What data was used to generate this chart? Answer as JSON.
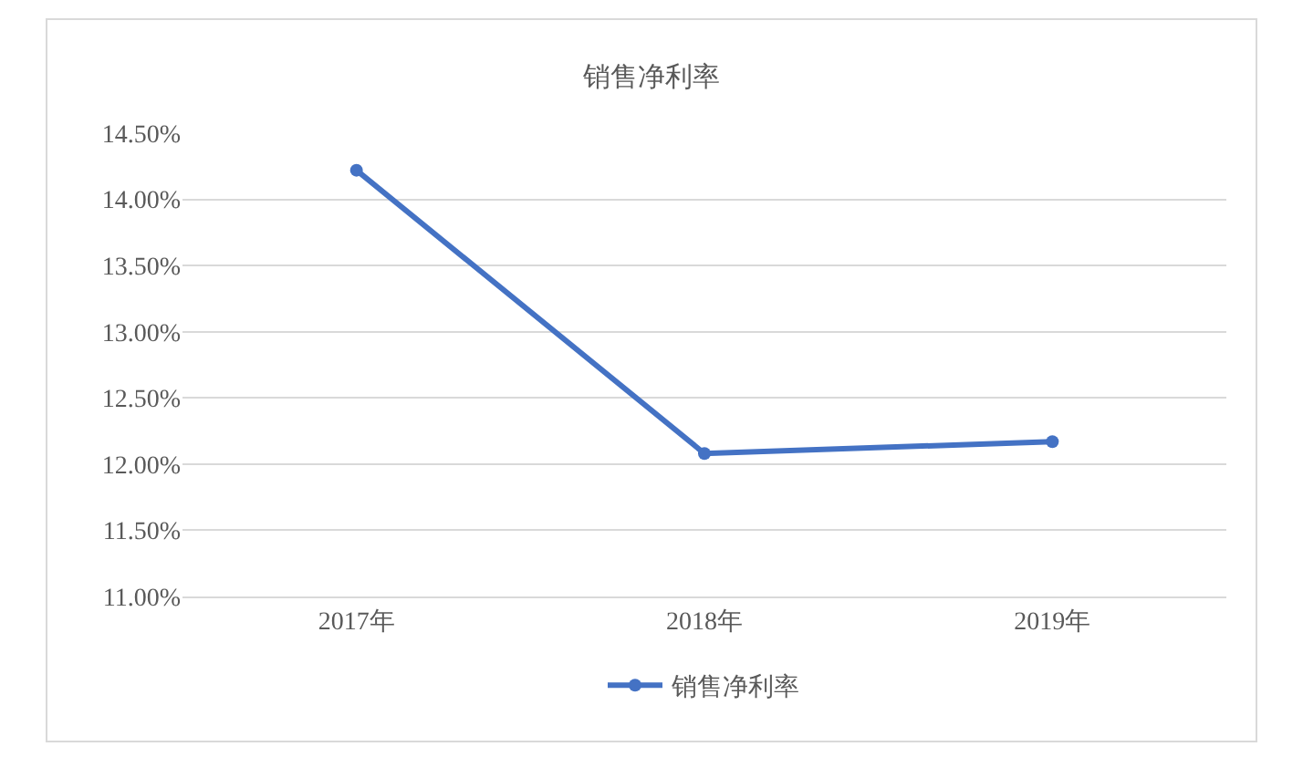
{
  "chart_data": {
    "type": "line",
    "title": "销售净利率",
    "categories": [
      "2017年",
      "2018年",
      "2019年"
    ],
    "series": [
      {
        "name": "销售净利率",
        "color": "#4472c4",
        "values": [
          14.22,
          12.08,
          12.17
        ]
      }
    ],
    "ylim": [
      11,
      14.5
    ],
    "yticks": [
      {
        "value": 11,
        "label": "11.00%"
      },
      {
        "value": 11.5,
        "label": "11.50%"
      },
      {
        "value": 12,
        "label": "12.00%"
      },
      {
        "value": 12.5,
        "label": "12.50%"
      },
      {
        "value": 13,
        "label": "13.00%"
      },
      {
        "value": 13.5,
        "label": "13.50%"
      },
      {
        "value": 14,
        "label": "14.00%"
      },
      {
        "value": 14.5,
        "label": "14.50%"
      }
    ],
    "grid": "y",
    "legend": "bottom",
    "marker": "circle",
    "line_style": "solid"
  }
}
